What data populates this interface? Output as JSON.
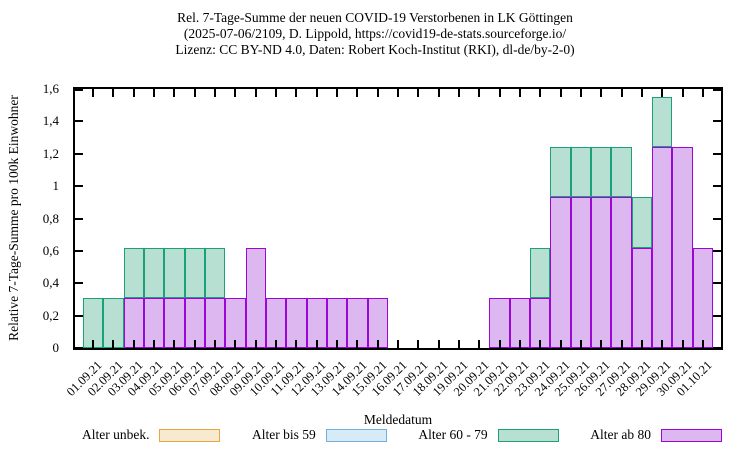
{
  "title": {
    "line1": "Rel. 7-Tage-Summe der neuen COVID-19 Verstorbenen in LK Göttingen",
    "line2": "(2025-07-06/2109, D. Lippold, https://covid19-de-stats.sourceforge.io/",
    "line3": "Lizenz: CC BY-ND 4.0, Daten: Robert Koch-Institut (RKI), dl-de/by-2-0)"
  },
  "chart_data": {
    "type": "bar",
    "stacked": true,
    "stack_order": "last-series-at-bottom",
    "xlabel": "Meldedatum",
    "ylabel": "Relative 7-Tage-Summe pro 100k Einwohner",
    "ylim": [
      0,
      1.6
    ],
    "ytick_values": [
      0,
      0.2,
      0.4,
      0.6,
      0.8,
      1.0,
      1.2,
      1.4,
      1.6
    ],
    "ytick_labels": [
      "0",
      "0,2",
      "0,4",
      "0,6",
      "0,8",
      "1",
      "1,2",
      "1,4",
      "1,6"
    ],
    "grid": false,
    "legend_position": "bottom",
    "categories": [
      "01.09.21",
      "02.09.21",
      "03.09.21",
      "04.09.21",
      "05.09.21",
      "06.09.21",
      "07.09.21",
      "08.09.21",
      "09.09.21",
      "10.09.21",
      "11.09.21",
      "12.09.21",
      "13.09.21",
      "14.09.21",
      "15.09.21",
      "16.09.21",
      "17.09.21",
      "18.09.21",
      "19.09.21",
      "20.09.21",
      "21.09.21",
      "22.09.21",
      "23.09.21",
      "24.09.21",
      "25.09.21",
      "26.09.21",
      "27.09.21",
      "28.09.21",
      "29.09.21",
      "30.09.21",
      "01.10.21"
    ],
    "series": [
      {
        "name": "Alter unbek.",
        "border_color": "#e9a63f",
        "fill_color": "#f8ead0",
        "values": [
          0,
          0,
          0,
          0,
          0,
          0,
          0,
          0,
          0,
          0,
          0,
          0,
          0,
          0,
          0,
          0,
          0,
          0,
          0,
          0,
          0,
          0,
          0,
          0,
          0,
          0,
          0,
          0,
          0,
          0,
          0
        ]
      },
      {
        "name": "Alter bis 59",
        "border_color": "#6fb2dc",
        "fill_color": "#d6eaf8",
        "values": [
          0,
          0,
          0,
          0,
          0,
          0,
          0,
          0,
          0,
          0,
          0,
          0,
          0,
          0,
          0,
          0,
          0,
          0,
          0,
          0,
          0,
          0,
          0,
          0,
          0,
          0,
          0,
          0,
          0,
          0,
          0
        ]
      },
      {
        "name": "Alter 60 - 79",
        "border_color": "#1aa179",
        "fill_color": "#b8e0d2",
        "values": [
          0.31,
          0.31,
          0.31,
          0.31,
          0.31,
          0.31,
          0.31,
          0,
          0,
          0,
          0,
          0,
          0,
          0,
          0,
          0,
          0,
          0,
          0,
          0,
          0,
          0,
          0.31,
          0.31,
          0.31,
          0.31,
          0.31,
          0.31,
          0.31,
          0,
          0
        ]
      },
      {
        "name": "Alter ab 80",
        "border_color": "#9c06d6",
        "fill_color": "#ddb8f0",
        "values": [
          0,
          0,
          0.31,
          0.31,
          0.31,
          0.31,
          0.31,
          0.31,
          0.62,
          0.31,
          0.31,
          0.31,
          0.31,
          0.31,
          0.31,
          0,
          0,
          0,
          0,
          0,
          0.31,
          0.31,
          0.31,
          0.93,
          0.93,
          0.93,
          0.93,
          0.62,
          1.24,
          1.24,
          0.62
        ]
      }
    ]
  }
}
